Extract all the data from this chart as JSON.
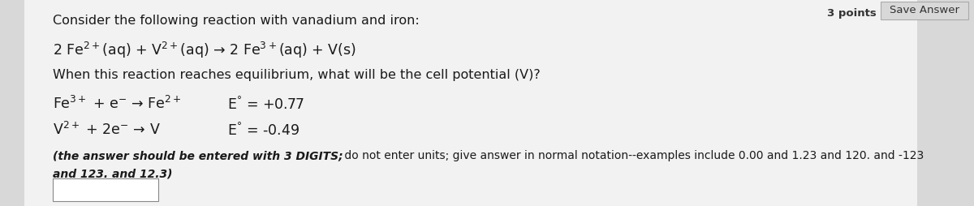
{
  "bg_color": "#d8d8d8",
  "main_bg": "#f0f0f0",
  "white": "#ffffff",
  "text_color": "#1a1a1a",
  "title_line": "Consider the following reaction with vanadium and iron:",
  "reaction_line": "2 Fe$^{2+}$(aq) + V$^{2+}$(aq) → 2 Fe$^{3+}$(aq) + V(s)",
  "question_line": "When this reaction reaches equilibrium, what will be the cell potential (V)?",
  "half_rxn1_left": "Fe$^{3+}$ + e$^{-}$ → Fe$^{2+}$",
  "half_rxn1_right": "E$^{°}$ = +0.77",
  "half_rxn2_left": "V$^{2+}$ + 2e$^{-}$ → V",
  "half_rxn2_right": "E$^{°}$ = -0.49",
  "note_bold": "(the answer should be entered with 3 DIGITS;",
  "note_normal": " do not enter units; give answer in normal notation--examples include 0.00 and 1.23 and 120. and -123",
  "note_line2": "and 123. and 12.3)",
  "pts_label": "3 points",
  "save_label": "Save Answer",
  "font_size_main": 11.5,
  "font_size_note": 10.0,
  "font_size_header": 9.5
}
